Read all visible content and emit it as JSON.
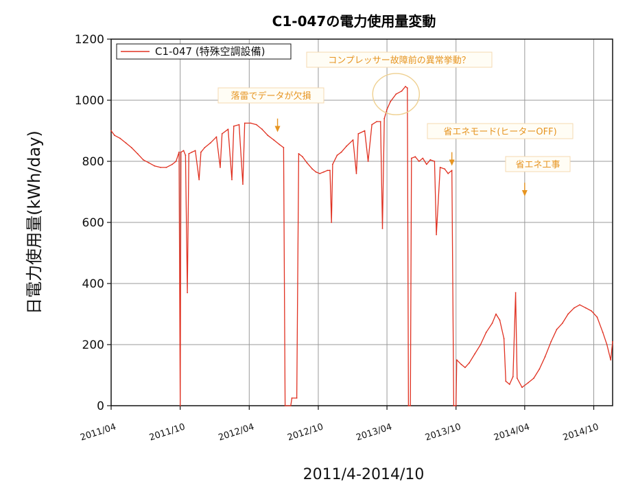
{
  "chart_data": {
    "type": "line",
    "title": "C1-047の電力使用量変動",
    "ylabel": "日電力使用量(kWh/day)",
    "xlabel": "2011/4-2014/10",
    "ylim": [
      0,
      1200
    ],
    "yticks": [
      0,
      200,
      400,
      600,
      800,
      1000,
      1200
    ],
    "xlim": [
      "2011-04-01",
      "2014-11-20"
    ],
    "xticks": [
      "2011/04",
      "2011/10",
      "2012/04",
      "2012/10",
      "2013/04",
      "2013/10",
      "2014/04",
      "2014/10"
    ],
    "grid": true,
    "legend_position": "top-left",
    "series": [
      {
        "name": "C1-047 (特殊空調設備)",
        "color": "#e03020",
        "points": [
          [
            "2011-04-01",
            900
          ],
          [
            "2011-04-10",
            885
          ],
          [
            "2011-04-25",
            875
          ],
          [
            "2011-05-10",
            860
          ],
          [
            "2011-05-25",
            845
          ],
          [
            "2011-06-10",
            825
          ],
          [
            "2011-06-25",
            805
          ],
          [
            "2011-07-10",
            795
          ],
          [
            "2011-07-25",
            785
          ],
          [
            "2011-08-10",
            780
          ],
          [
            "2011-08-25",
            780
          ],
          [
            "2011-09-10",
            790
          ],
          [
            "2011-09-20",
            800
          ],
          [
            "2011-09-28",
            830
          ],
          [
            "2011-10-01",
            0
          ],
          [
            "2011-10-03",
            830
          ],
          [
            "2011-10-10",
            835
          ],
          [
            "2011-10-15",
            820
          ],
          [
            "2011-10-20",
            370
          ],
          [
            "2011-10-24",
            825
          ],
          [
            "2011-11-01",
            830
          ],
          [
            "2011-11-10",
            835
          ],
          [
            "2011-11-20",
            740
          ],
          [
            "2011-11-25",
            830
          ],
          [
            "2011-12-05",
            845
          ],
          [
            "2011-12-20",
            860
          ],
          [
            "2012-01-05",
            880
          ],
          [
            "2012-01-15",
            780
          ],
          [
            "2012-01-20",
            890
          ],
          [
            "2012-02-05",
            905
          ],
          [
            "2012-02-15",
            740
          ],
          [
            "2012-02-20",
            915
          ],
          [
            "2012-03-05",
            920
          ],
          [
            "2012-03-15",
            725
          ],
          [
            "2012-03-20",
            925
          ],
          [
            "2012-04-05",
            925
          ],
          [
            "2012-04-20",
            920
          ],
          [
            "2012-05-05",
            905
          ],
          [
            "2012-05-20",
            885
          ],
          [
            "2012-06-05",
            870
          ],
          [
            "2012-06-20",
            855
          ],
          [
            "2012-07-01",
            845
          ],
          [
            "2012-07-05",
            0
          ],
          [
            "2012-07-20",
            0
          ],
          [
            "2012-07-23",
            25
          ],
          [
            "2012-08-05",
            25
          ],
          [
            "2012-08-10",
            825
          ],
          [
            "2012-08-20",
            815
          ],
          [
            "2012-09-01",
            795
          ],
          [
            "2012-09-15",
            775
          ],
          [
            "2012-09-25",
            765
          ],
          [
            "2012-10-05",
            760
          ],
          [
            "2012-10-15",
            765
          ],
          [
            "2012-10-25",
            770
          ],
          [
            "2012-11-01",
            770
          ],
          [
            "2012-11-05",
            600
          ],
          [
            "2012-11-08",
            790
          ],
          [
            "2012-11-20",
            820
          ],
          [
            "2012-12-01",
            830
          ],
          [
            "2012-12-15",
            850
          ],
          [
            "2013-01-01",
            870
          ],
          [
            "2013-01-10",
            760
          ],
          [
            "2013-01-15",
            890
          ],
          [
            "2013-02-01",
            900
          ],
          [
            "2013-02-10",
            800
          ],
          [
            "2013-02-20",
            920
          ],
          [
            "2013-03-05",
            930
          ],
          [
            "2013-03-15",
            930
          ],
          [
            "2013-03-20",
            580
          ],
          [
            "2013-03-25",
            940
          ],
          [
            "2013-04-01",
            970
          ],
          [
            "2013-04-10",
            995
          ],
          [
            "2013-04-25",
            1020
          ],
          [
            "2013-05-10",
            1030
          ],
          [
            "2013-05-20",
            1045
          ],
          [
            "2013-05-25",
            1040
          ],
          [
            "2013-05-28",
            0
          ],
          [
            "2013-06-02",
            0
          ],
          [
            "2013-06-05",
            810
          ],
          [
            "2013-06-15",
            815
          ],
          [
            "2013-06-25",
            800
          ],
          [
            "2013-07-05",
            810
          ],
          [
            "2013-07-15",
            790
          ],
          [
            "2013-07-25",
            805
          ],
          [
            "2013-08-05",
            800
          ],
          [
            "2013-08-10",
            560
          ],
          [
            "2013-08-20",
            780
          ],
          [
            "2013-09-01",
            775
          ],
          [
            "2013-09-10",
            760
          ],
          [
            "2013-09-20",
            770
          ],
          [
            "2013-09-25",
            0
          ],
          [
            "2013-10-01",
            0
          ],
          [
            "2013-10-03",
            150
          ],
          [
            "2013-10-15",
            135
          ],
          [
            "2013-10-25",
            125
          ],
          [
            "2013-11-05",
            140
          ],
          [
            "2013-11-20",
            170
          ],
          [
            "2013-12-05",
            200
          ],
          [
            "2013-12-20",
            240
          ],
          [
            "2014-01-05",
            270
          ],
          [
            "2014-01-15",
            300
          ],
          [
            "2014-01-25",
            280
          ],
          [
            "2014-02-05",
            220
          ],
          [
            "2014-02-10",
            80
          ],
          [
            "2014-02-20",
            70
          ],
          [
            "2014-03-01",
            95
          ],
          [
            "2014-03-08",
            370
          ],
          [
            "2014-03-12",
            90
          ],
          [
            "2014-03-25",
            60
          ],
          [
            "2014-04-10",
            75
          ],
          [
            "2014-04-25",
            90
          ],
          [
            "2014-05-10",
            120
          ],
          [
            "2014-05-25",
            160
          ],
          [
            "2014-06-10",
            210
          ],
          [
            "2014-06-25",
            250
          ],
          [
            "2014-07-10",
            270
          ],
          [
            "2014-07-25",
            300
          ],
          [
            "2014-08-10",
            320
          ],
          [
            "2014-08-25",
            330
          ],
          [
            "2014-09-10",
            320
          ],
          [
            "2014-09-25",
            310
          ],
          [
            "2014-10-10",
            290
          ],
          [
            "2014-10-25",
            240
          ],
          [
            "2014-11-05",
            200
          ],
          [
            "2014-11-15",
            150
          ],
          [
            "2014-11-20",
            210
          ]
        ]
      }
    ],
    "annotations": [
      {
        "text": "落雷でデータが欠損",
        "color": "#e69420",
        "arrow_x": "2012-06-15",
        "arrow_y_from": 940,
        "arrow_y_to": 900
      },
      {
        "text": "コンプレッサー故障前の異常挙動？",
        "color": "#e69420",
        "circle_x": "2013-04-25",
        "circle_y": 1020
      },
      {
        "text": "省エネモード(ヒーターOFF)",
        "color": "#e69420",
        "arrow_x": "2013-09-20",
        "arrow_y_from": 830,
        "arrow_y_to": 790
      },
      {
        "text": "省エネ工事",
        "color": "#e69420",
        "arrow_x": "2014-04-01",
        "arrow_y_from": 730,
        "arrow_y_to": 690
      }
    ]
  }
}
